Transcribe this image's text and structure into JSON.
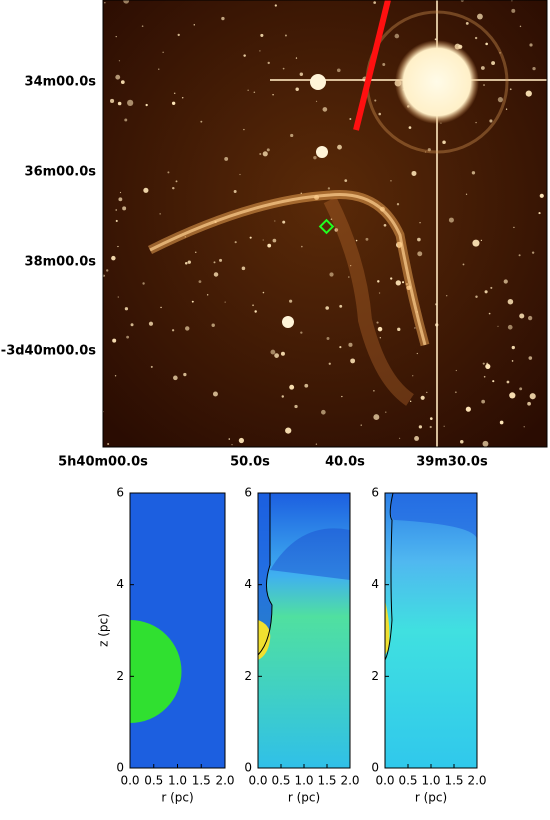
{
  "image": {
    "y_ticks": [
      "34m00.0s",
      "36m00.0s",
      "38m00.0s",
      "-3d40m00.0s"
    ],
    "x_ticks": [
      "5h40m00.0s",
      "50.0s",
      "40.0s",
      "39m30.0s"
    ]
  },
  "simulation": {
    "ylabel": "z (pc)",
    "xlabel": "r (pc)",
    "ylim": [
      0,
      6
    ],
    "yticks": [
      0,
      2,
      4,
      6
    ],
    "xlim": [
      0,
      2
    ],
    "xticks": [
      {
        "value": 0,
        "label": "0.0"
      },
      0.5,
      {
        "value": 1,
        "label": "1.0"
      },
      1.5,
      {
        "value": 2,
        "label": "2.0"
      }
    ]
  }
}
